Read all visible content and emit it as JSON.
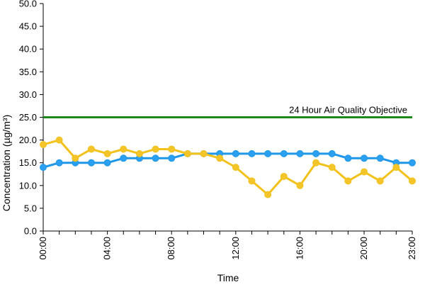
{
  "chart_data": {
    "type": "line",
    "title": "",
    "xlabel": "Time",
    "ylabel": "Concentration (µg/m³)",
    "ylim": [
      0,
      50
    ],
    "yticks": [
      "0.0",
      "5.0",
      "10.0",
      "15.0",
      "20.0",
      "25.0",
      "30.0",
      "35.0",
      "40.0",
      "45.0",
      "50.0"
    ],
    "x": [
      "00:00",
      "01:00",
      "02:00",
      "03:00",
      "04:00",
      "05:00",
      "06:00",
      "07:00",
      "08:00",
      "09:00",
      "10:00",
      "11:00",
      "12:00",
      "13:00",
      "14:00",
      "15:00",
      "16:00",
      "17:00",
      "18:00",
      "19:00",
      "20:00",
      "21:00",
      "22:00",
      "23:00"
    ],
    "xtick_labels": [
      "00:00",
      "04:00",
      "08:00",
      "12:00",
      "16:00",
      "20:00",
      "23:00"
    ],
    "grid": false,
    "series": [
      {
        "color": "#1f97e8",
        "marker_color": "#2b9ff0",
        "values": [
          14,
          15,
          15,
          15,
          15,
          16,
          16,
          16,
          16,
          17,
          17,
          17,
          17,
          17,
          17,
          17,
          17,
          17,
          17,
          16,
          16,
          16,
          15,
          15
        ]
      },
      {
        "color": "#f2c21b",
        "marker_color": "#f4c52a",
        "values": [
          19,
          20,
          16,
          18,
          17,
          18,
          17,
          18,
          18,
          17,
          17,
          16,
          14,
          11,
          8,
          12,
          10,
          15,
          14,
          11,
          13,
          11,
          14,
          11
        ]
      }
    ],
    "reference_line": {
      "value": 25,
      "label": "24 Hour Air Quality Objective",
      "color": "#1e8a1e"
    }
  }
}
